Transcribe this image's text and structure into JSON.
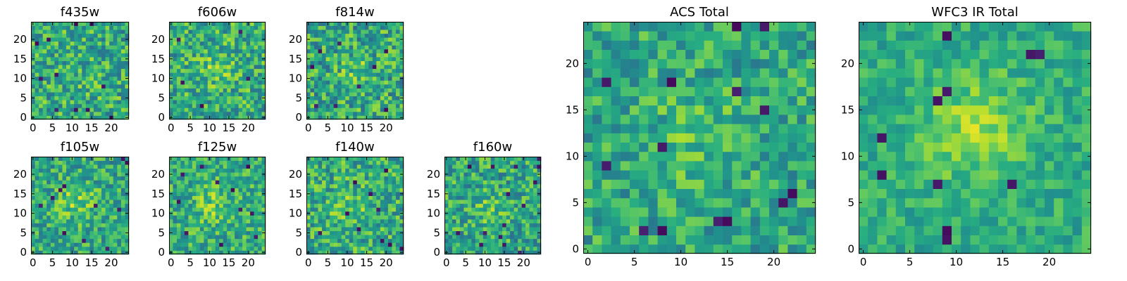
{
  "colormap": {
    "name": "viridis",
    "stops": [
      "#440154",
      "#472c7a",
      "#3b518b",
      "#2c718e",
      "#21908d",
      "#27ad81",
      "#5cc863",
      "#aadc32",
      "#fde725"
    ]
  },
  "chart_data": [
    {
      "type": "heatmap",
      "title": "f435w",
      "grid_size": 25,
      "xlim": [
        -0.5,
        24.5
      ],
      "ylim": [
        -0.5,
        24.5
      ],
      "xticks": [
        0,
        5,
        10,
        15,
        20
      ],
      "yticks": [
        0,
        5,
        10,
        15,
        20
      ],
      "seed": 11,
      "background": 0.62,
      "noise": 0.25,
      "blob": {
        "x": 12,
        "y": 12,
        "sigma": 4,
        "amp": 0.03
      },
      "dark_pixels": [
        [
          11,
          24
        ],
        [
          15,
          24
        ],
        [
          1,
          19
        ],
        [
          4,
          20
        ],
        [
          2,
          10
        ],
        [
          6,
          11
        ],
        [
          18,
          8
        ],
        [
          6,
          2
        ],
        [
          11,
          2
        ],
        [
          14,
          2
        ],
        [
          20,
          0
        ]
      ]
    },
    {
      "type": "heatmap",
      "title": "f606w",
      "grid_size": 25,
      "xlim": [
        -0.5,
        24.5
      ],
      "ylim": [
        -0.5,
        24.5
      ],
      "xticks": [
        0,
        5,
        10,
        15,
        20
      ],
      "yticks": [
        0,
        5,
        10,
        15,
        20
      ],
      "seed": 22,
      "background": 0.62,
      "noise": 0.25,
      "blob": {
        "x": 12,
        "y": 12,
        "sigma": 3,
        "amp": 0.14
      },
      "dark_pixels": [
        [
          2,
          20
        ],
        [
          3,
          9
        ],
        [
          8,
          3
        ],
        [
          20,
          10
        ],
        [
          18,
          22
        ]
      ]
    },
    {
      "type": "heatmap",
      "title": "f814w",
      "grid_size": 25,
      "xlim": [
        -0.5,
        24.5
      ],
      "ylim": [
        -0.5,
        24.5
      ],
      "xticks": [
        0,
        5,
        10,
        15,
        20
      ],
      "yticks": [
        0,
        5,
        10,
        15,
        20
      ],
      "seed": 33,
      "background": 0.6,
      "noise": 0.26,
      "blob": {
        "x": 12,
        "y": 12,
        "sigma": 3,
        "amp": 0.12
      },
      "dark_pixels": [
        [
          8,
          19
        ],
        [
          3,
          17
        ],
        [
          20,
          17
        ],
        [
          1,
          13
        ],
        [
          17,
          13
        ],
        [
          13,
          8
        ],
        [
          2,
          3
        ],
        [
          7,
          3
        ],
        [
          20,
          2
        ]
      ]
    },
    {
      "type": "heatmap",
      "title": "f105w",
      "grid_size": 25,
      "xlim": [
        -0.5,
        24.5
      ],
      "ylim": [
        -0.5,
        24.5
      ],
      "xticks": [
        0,
        5,
        10,
        15,
        20
      ],
      "yticks": [
        0,
        5,
        10,
        15,
        20
      ],
      "seed": 44,
      "background": 0.6,
      "noise": 0.22,
      "blob": {
        "x": 11,
        "y": 13,
        "sigma": 3.5,
        "amp": 0.18
      },
      "dark_pixels": [
        [
          7,
          16
        ],
        [
          8,
          17
        ],
        [
          5,
          14
        ],
        [
          2,
          12
        ],
        [
          8,
          5
        ],
        [
          16,
          12
        ],
        [
          22,
          11
        ],
        [
          13,
          3
        ],
        [
          19,
          1
        ],
        [
          23,
          24
        ],
        [
          24,
          23
        ]
      ]
    },
    {
      "type": "heatmap",
      "title": "f125w",
      "grid_size": 25,
      "xlim": [
        -0.5,
        24.5
      ],
      "ylim": [
        -0.5,
        24.5
      ],
      "xticks": [
        0,
        5,
        10,
        15,
        20
      ],
      "yticks": [
        0,
        5,
        10,
        15,
        20
      ],
      "seed": 55,
      "background": 0.62,
      "noise": 0.22,
      "blob": {
        "x": 11,
        "y": 12,
        "sigma": 3.5,
        "amp": 0.14
      },
      "dark_pixels": [
        [
          8,
          22
        ],
        [
          12,
          18
        ],
        [
          20,
          22
        ],
        [
          3,
          20
        ],
        [
          16,
          16
        ],
        [
          2,
          13
        ],
        [
          18,
          11
        ],
        [
          21,
          10
        ],
        [
          4,
          5
        ],
        [
          22,
          4
        ],
        [
          13,
          2
        ]
      ]
    },
    {
      "type": "heatmap",
      "title": "f140w",
      "grid_size": 25,
      "xlim": [
        -0.5,
        24.5
      ],
      "ylim": [
        -0.5,
        24.5
      ],
      "xticks": [
        0,
        5,
        10,
        15,
        20
      ],
      "yticks": [
        0,
        5,
        10,
        15,
        20
      ],
      "seed": 66,
      "background": 0.62,
      "noise": 0.24,
      "blob": {
        "x": 11,
        "y": 11,
        "sigma": 3.5,
        "amp": 0.12
      },
      "dark_pixels": [
        [
          12,
          18
        ],
        [
          20,
          21
        ],
        [
          16,
          15
        ],
        [
          10,
          10
        ],
        [
          18,
          11
        ],
        [
          13,
          6
        ],
        [
          3,
          5
        ],
        [
          19,
          3
        ],
        [
          21,
          2
        ],
        [
          24,
          1
        ]
      ]
    },
    {
      "type": "heatmap",
      "title": "f160w",
      "grid_size": 25,
      "xlim": [
        -0.5,
        24.5
      ],
      "ylim": [
        -0.5,
        24.5
      ],
      "xticks": [
        0,
        5,
        10,
        15,
        20
      ],
      "yticks": [
        0,
        5,
        10,
        15,
        20
      ],
      "seed": 77,
      "background": 0.6,
      "noise": 0.24,
      "blob": {
        "x": 11,
        "y": 11,
        "sigma": 3,
        "amp": 0.1
      },
      "dark_pixels": [
        [
          6,
          22
        ],
        [
          12,
          22
        ],
        [
          18,
          22
        ],
        [
          24,
          22
        ],
        [
          23,
          18
        ],
        [
          16,
          15
        ],
        [
          20,
          12
        ],
        [
          15,
          7
        ],
        [
          3,
          5
        ],
        [
          10,
          5
        ],
        [
          14,
          4
        ],
        [
          9,
          2
        ],
        [
          15,
          2
        ],
        [
          19,
          0
        ],
        [
          24,
          24
        ]
      ]
    },
    {
      "type": "heatmap",
      "title": "ACS Total",
      "grid_size": 25,
      "xlim": [
        -0.5,
        24.5
      ],
      "ylim": [
        -0.5,
        24.5
      ],
      "xticks": [
        0,
        5,
        10,
        15,
        20
      ],
      "yticks": [
        0,
        5,
        10,
        15,
        20
      ],
      "seed": 88,
      "background": 0.6,
      "noise": 0.2,
      "blob": {
        "x": 12,
        "y": 12,
        "sigma": 3.5,
        "amp": 0.12
      },
      "dark_pixels": [
        [
          16,
          24
        ],
        [
          19,
          24
        ],
        [
          2,
          18
        ],
        [
          9,
          18
        ],
        [
          16,
          17
        ],
        [
          19,
          15
        ],
        [
          8,
          11
        ],
        [
          2,
          9
        ],
        [
          22,
          6
        ],
        [
          21,
          5
        ],
        [
          14,
          3
        ],
        [
          15,
          3
        ],
        [
          6,
          2
        ],
        [
          8,
          2
        ]
      ]
    },
    {
      "type": "heatmap",
      "title": "WFC3 IR Total",
      "grid_size": 25,
      "xlim": [
        -0.5,
        24.5
      ],
      "ylim": [
        -0.5,
        24.5
      ],
      "xticks": [
        0,
        5,
        10,
        15,
        20
      ],
      "yticks": [
        0,
        5,
        10,
        15,
        20
      ],
      "seed": 99,
      "background": 0.62,
      "noise": 0.14,
      "blob": {
        "x": 12,
        "y": 13,
        "sigma": 4,
        "amp": 0.22
      },
      "dark_pixels": [
        [
          9,
          23
        ],
        [
          18,
          21
        ],
        [
          19,
          21
        ],
        [
          8,
          16
        ],
        [
          9,
          17
        ],
        [
          2,
          12
        ],
        [
          2,
          8
        ],
        [
          8,
          7
        ],
        [
          16,
          7
        ],
        [
          9,
          1
        ],
        [
          9,
          2
        ]
      ]
    }
  ]
}
